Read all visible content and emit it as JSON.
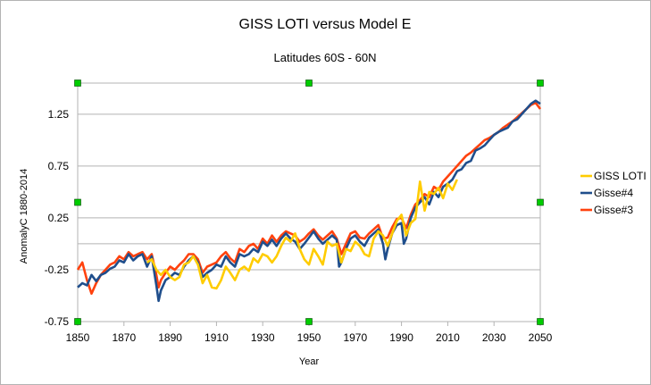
{
  "chart_data": {
    "type": "line",
    "title": "GISS LOTI versus Model E",
    "subtitle": "Latitudes 60S - 60N",
    "xlabel": "Year",
    "ylabel": "AnomalyC 1880-2014",
    "xlim": [
      1850,
      2050
    ],
    "ylim": [
      -0.75,
      1.55
    ],
    "x_ticks": [
      1850,
      1870,
      1890,
      1910,
      1930,
      1950,
      1970,
      1990,
      2010,
      2030,
      2050
    ],
    "y_ticks": [
      1.25,
      0.75,
      0.25,
      -0.25,
      -0.75
    ],
    "x_tick_labels": [
      "1850",
      "1870",
      "1890",
      "1910",
      "1930",
      "1950",
      "1970",
      "1990",
      "2010",
      "2030",
      "2050"
    ],
    "y_tick_labels": [
      "1.25",
      "0.75",
      "0.25",
      "-0.25",
      "-0.75"
    ],
    "grid": true,
    "legend_position": "right",
    "series": [
      {
        "name": "GISS LOTI",
        "color": "#ffcc00",
        "x": [
          1880,
          1882,
          1884,
          1886,
          1888,
          1890,
          1892,
          1894,
          1896,
          1898,
          1900,
          1902,
          1904,
          1906,
          1908,
          1910,
          1912,
          1914,
          1916,
          1918,
          1920,
          1922,
          1924,
          1926,
          1928,
          1930,
          1932,
          1934,
          1936,
          1938,
          1940,
          1942,
          1944,
          1946,
          1948,
          1950,
          1952,
          1954,
          1956,
          1958,
          1960,
          1962,
          1964,
          1966,
          1968,
          1970,
          1972,
          1974,
          1976,
          1978,
          1980,
          1982,
          1984,
          1986,
          1988,
          1990,
          1992,
          1994,
          1996,
          1998,
          2000,
          2002,
          2004,
          2006,
          2008,
          2010,
          2012,
          2014
        ],
        "values": [
          -0.18,
          -0.15,
          -0.25,
          -0.3,
          -0.25,
          -0.32,
          -0.35,
          -0.32,
          -0.2,
          -0.18,
          -0.12,
          -0.2,
          -0.38,
          -0.3,
          -0.42,
          -0.43,
          -0.35,
          -0.22,
          -0.28,
          -0.35,
          -0.25,
          -0.22,
          -0.26,
          -0.14,
          -0.18,
          -0.1,
          -0.12,
          -0.18,
          -0.12,
          -0.02,
          0.06,
          0.02,
          0.1,
          -0.05,
          -0.15,
          -0.2,
          -0.05,
          -0.12,
          -0.2,
          0.02,
          -0.02,
          0.0,
          -0.18,
          -0.05,
          -0.07,
          0.02,
          -0.02,
          -0.1,
          -0.12,
          0.05,
          0.12,
          0.08,
          -0.02,
          0.1,
          0.22,
          0.28,
          0.08,
          0.2,
          0.24,
          0.6,
          0.32,
          0.5,
          0.48,
          0.54,
          0.44,
          0.58,
          0.52,
          0.62
        ]
      },
      {
        "name": "Gisse#4",
        "color": "#1f4e8c",
        "x": [
          1850,
          1852,
          1854,
          1856,
          1858,
          1860,
          1862,
          1864,
          1866,
          1868,
          1870,
          1872,
          1874,
          1876,
          1878,
          1880,
          1882,
          1884,
          1885,
          1886,
          1888,
          1890,
          1892,
          1894,
          1896,
          1898,
          1900,
          1902,
          1904,
          1906,
          1908,
          1910,
          1912,
          1914,
          1916,
          1918,
          1920,
          1922,
          1924,
          1926,
          1928,
          1930,
          1932,
          1934,
          1936,
          1938,
          1940,
          1942,
          1944,
          1946,
          1948,
          1950,
          1952,
          1954,
          1956,
          1958,
          1960,
          1962,
          1963,
          1964,
          1966,
          1968,
          1970,
          1972,
          1974,
          1976,
          1978,
          1980,
          1982,
          1983,
          1984,
          1986,
          1988,
          1990,
          1991,
          1992,
          1994,
          1996,
          1998,
          2000,
          2002,
          2004,
          2006,
          2008,
          2010,
          2012,
          2014,
          2016,
          2018,
          2020,
          2022,
          2024,
          2026,
          2028,
          2030,
          2032,
          2034,
          2036,
          2038,
          2040,
          2042,
          2044,
          2046,
          2048,
          2050
        ],
        "values": [
          -0.42,
          -0.38,
          -0.4,
          -0.3,
          -0.36,
          -0.3,
          -0.28,
          -0.24,
          -0.22,
          -0.16,
          -0.18,
          -0.1,
          -0.16,
          -0.12,
          -0.1,
          -0.22,
          -0.12,
          -0.4,
          -0.55,
          -0.45,
          -0.35,
          -0.32,
          -0.28,
          -0.3,
          -0.22,
          -0.16,
          -0.12,
          -0.18,
          -0.32,
          -0.28,
          -0.25,
          -0.2,
          -0.22,
          -0.12,
          -0.18,
          -0.22,
          -0.1,
          -0.12,
          -0.1,
          -0.05,
          -0.08,
          0.02,
          -0.02,
          0.04,
          -0.02,
          0.05,
          0.1,
          0.05,
          0.02,
          -0.05,
          0.0,
          0.06,
          0.12,
          0.05,
          0.0,
          0.04,
          0.08,
          0.04,
          -0.22,
          -0.18,
          -0.05,
          0.05,
          0.08,
          0.02,
          -0.02,
          0.06,
          0.1,
          0.14,
          0.0,
          -0.15,
          -0.05,
          0.1,
          0.18,
          0.2,
          0.0,
          0.05,
          0.25,
          0.35,
          0.4,
          0.45,
          0.38,
          0.5,
          0.45,
          0.55,
          0.58,
          0.62,
          0.7,
          0.72,
          0.78,
          0.8,
          0.9,
          0.92,
          0.95,
          1.0,
          1.05,
          1.08,
          1.1,
          1.12,
          1.18,
          1.2,
          1.25,
          1.3,
          1.35,
          1.38,
          1.35
        ]
      },
      {
        "name": "Gisse#3",
        "color": "#ff420e",
        "x": [
          1850,
          1852,
          1854,
          1856,
          1858,
          1860,
          1862,
          1864,
          1866,
          1868,
          1870,
          1872,
          1874,
          1876,
          1878,
          1880,
          1882,
          1884,
          1885,
          1886,
          1888,
          1890,
          1892,
          1894,
          1896,
          1898,
          1900,
          1902,
          1904,
          1906,
          1908,
          1910,
          1912,
          1914,
          1916,
          1918,
          1920,
          1922,
          1924,
          1926,
          1928,
          1930,
          1932,
          1934,
          1936,
          1938,
          1940,
          1942,
          1944,
          1946,
          1948,
          1950,
          1952,
          1954,
          1956,
          1958,
          1960,
          1962,
          1964,
          1966,
          1968,
          1970,
          1972,
          1974,
          1976,
          1978,
          1980,
          1982,
          1984,
          1986,
          1988,
          1990,
          1992,
          1994,
          1996,
          1998,
          2000,
          2002,
          2004,
          2006,
          2008,
          2010,
          2012,
          2014,
          2016,
          2018,
          2020,
          2022,
          2024,
          2026,
          2028,
          2030,
          2032,
          2034,
          2036,
          2038,
          2040,
          2042,
          2044,
          2046,
          2048,
          2050
        ],
        "values": [
          -0.25,
          -0.18,
          -0.35,
          -0.48,
          -0.38,
          -0.3,
          -0.25,
          -0.2,
          -0.18,
          -0.12,
          -0.15,
          -0.08,
          -0.12,
          -0.1,
          -0.08,
          -0.15,
          -0.1,
          -0.3,
          -0.42,
          -0.35,
          -0.28,
          -0.22,
          -0.25,
          -0.2,
          -0.16,
          -0.1,
          -0.1,
          -0.15,
          -0.28,
          -0.22,
          -0.2,
          -0.18,
          -0.12,
          -0.08,
          -0.14,
          -0.18,
          -0.05,
          -0.08,
          -0.02,
          0.0,
          -0.05,
          0.05,
          0.0,
          0.08,
          0.02,
          0.08,
          0.12,
          0.1,
          0.08,
          0.02,
          0.05,
          0.1,
          0.14,
          0.08,
          0.04,
          0.08,
          0.12,
          0.05,
          -0.1,
          0.0,
          0.1,
          0.12,
          0.06,
          0.05,
          0.1,
          0.14,
          0.18,
          0.05,
          0.06,
          0.16,
          0.24,
          0.25,
          0.15,
          0.28,
          0.38,
          0.42,
          0.48,
          0.45,
          0.55,
          0.52,
          0.6,
          0.65,
          0.7,
          0.75,
          0.8,
          0.85,
          0.88,
          0.92,
          0.96,
          1.0,
          1.02,
          1.05,
          1.08,
          1.12,
          1.15,
          1.18,
          1.22,
          1.26,
          1.3,
          1.34,
          1.36,
          1.3
        ]
      }
    ]
  }
}
